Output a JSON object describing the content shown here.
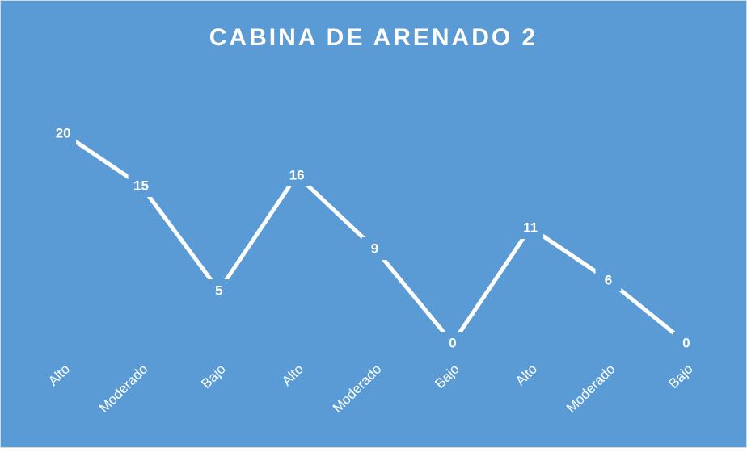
{
  "chart_data": {
    "type": "line",
    "title": "CABINA DE ARENADO 2",
    "categories": [
      "Alto",
      "Moderado",
      "Bajo",
      "Alto",
      "Moderado",
      "Bajo",
      "Alto",
      "Moderado",
      "Bajo"
    ],
    "values": [
      20,
      15,
      5,
      16,
      9,
      0,
      11,
      6,
      0
    ],
    "color": "#ffffff",
    "background": "#5b9bd5",
    "ylim": [
      0,
      20
    ],
    "drop_lines": true,
    "data_labels": true
  }
}
